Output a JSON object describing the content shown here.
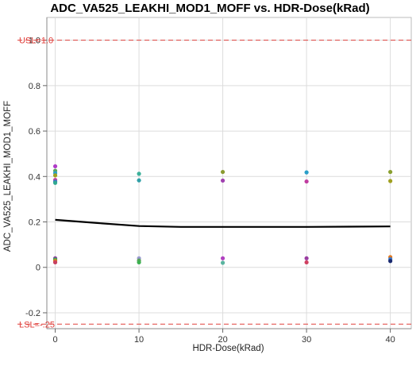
{
  "chart_data": {
    "type": "scatter",
    "title": "ADC_VA525_LEAKHI_MOD1_MOFF vs. HDR-Dose(kRad)",
    "xlabel": "HDR-Dose(kRad)",
    "ylabel": "ADC_VA525_LEAKHI_MOD1_MOFF",
    "xlim": [
      -1,
      42.5
    ],
    "ylim": [
      -0.27,
      1.1
    ],
    "x_ticks": [
      0,
      10,
      20,
      30,
      40
    ],
    "y_ticks": [
      -0.2,
      0,
      0.2,
      0.4,
      0.6,
      0.8,
      1.0
    ],
    "x_tick_labels": [
      "0",
      "10",
      "20",
      "30",
      "40"
    ],
    "y_tick_labels": [
      "-0.2",
      "0",
      "0.2",
      "0.4",
      "0.6",
      "0.8",
      "1.0"
    ],
    "grid": true,
    "reference_lines": [
      {
        "label": "USL=1.0",
        "value": 1.0,
        "color": "#e0403c",
        "style": "dashed"
      },
      {
        "label": "LSL=-.25",
        "value": -0.25,
        "color": "#e0403c",
        "style": "dashed"
      }
    ],
    "points": [
      {
        "x": 0,
        "y": 0.445,
        "color": "#b03cc8"
      },
      {
        "x": 0,
        "y": 0.425,
        "color": "#5aa55a"
      },
      {
        "x": 0,
        "y": 0.415,
        "color": "#2a9ec8"
      },
      {
        "x": 0,
        "y": 0.405,
        "color": "#a0a020"
      },
      {
        "x": 0,
        "y": 0.385,
        "color": "#d0409a"
      },
      {
        "x": 0,
        "y": 0.378,
        "color": "#3c78c8"
      },
      {
        "x": 0,
        "y": 0.372,
        "color": "#30a890"
      },
      {
        "x": 0,
        "y": 0.04,
        "color": "#8a3ca0"
      },
      {
        "x": 0,
        "y": 0.034,
        "color": "#3cb050"
      },
      {
        "x": 0,
        "y": 0.028,
        "color": "#e07820"
      },
      {
        "x": 0,
        "y": 0.022,
        "color": "#c84060"
      },
      {
        "x": 10,
        "y": 0.412,
        "color": "#3cb09a"
      },
      {
        "x": 10,
        "y": 0.383,
        "color": "#30a0a8"
      },
      {
        "x": 10,
        "y": 0.04,
        "color": "#9a9ad0"
      },
      {
        "x": 10,
        "y": 0.03,
        "color": "#5aa05a"
      },
      {
        "x": 10,
        "y": 0.022,
        "color": "#3cb050"
      },
      {
        "x": 20,
        "y": 0.42,
        "color": "#8a9a30"
      },
      {
        "x": 20,
        "y": 0.382,
        "color": "#a040b0"
      },
      {
        "x": 20,
        "y": 0.04,
        "color": "#b040c0"
      },
      {
        "x": 20,
        "y": 0.02,
        "color": "#5ab4a0"
      },
      {
        "x": 30,
        "y": 0.418,
        "color": "#2a9ec8"
      },
      {
        "x": 30,
        "y": 0.378,
        "color": "#c03ca0"
      },
      {
        "x": 30,
        "y": 0.04,
        "color": "#9a3ca0"
      },
      {
        "x": 30,
        "y": 0.022,
        "color": "#d04060"
      },
      {
        "x": 40,
        "y": 0.42,
        "color": "#8aa030"
      },
      {
        "x": 40,
        "y": 0.38,
        "color": "#a0a020"
      },
      {
        "x": 40,
        "y": 0.045,
        "color": "#e07820"
      },
      {
        "x": 40,
        "y": 0.036,
        "color": "#3c78c8"
      },
      {
        "x": 40,
        "y": 0.028,
        "color": "#1a2a70"
      }
    ],
    "fit_line": {
      "color": "#000000",
      "x": [
        0,
        5,
        10,
        15,
        20,
        25,
        30,
        35,
        40
      ],
      "y": [
        0.209,
        0.195,
        0.182,
        0.178,
        0.178,
        0.178,
        0.178,
        0.179,
        0.18
      ]
    }
  }
}
